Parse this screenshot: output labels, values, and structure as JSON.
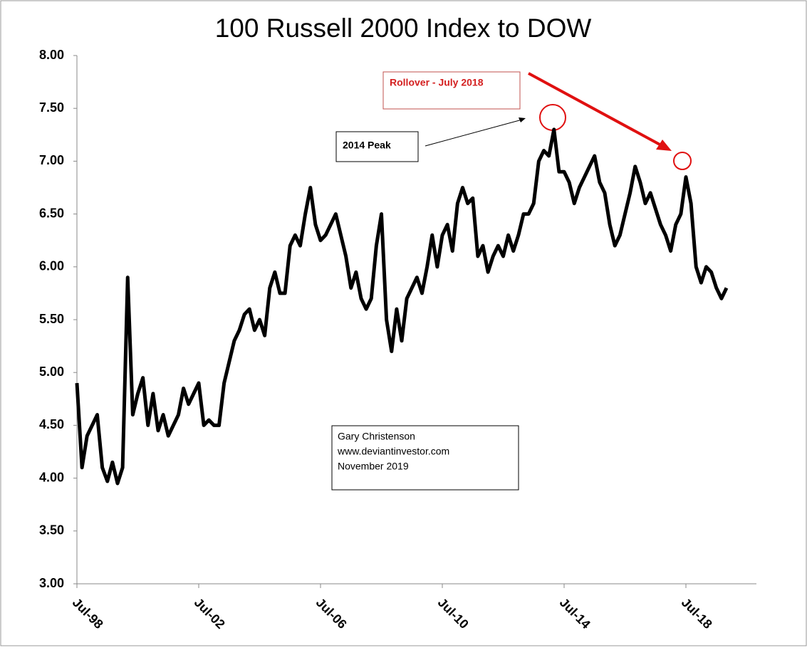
{
  "chart_data": {
    "type": "line",
    "title": "100 Russell 2000 Index to DOW",
    "categories": [
      "Jul-98",
      null,
      null,
      null,
      null,
      null,
      null,
      null,
      null,
      null,
      null,
      null,
      null,
      null,
      null,
      null,
      null,
      null,
      null,
      null,
      null,
      null,
      null,
      null,
      "Jul-02",
      null,
      null,
      null,
      null,
      null,
      null,
      null,
      null,
      null,
      null,
      null,
      null,
      null,
      null,
      null,
      null,
      null,
      null,
      null,
      null,
      null,
      null,
      null,
      "Jul-06",
      null,
      null,
      null,
      null,
      null,
      null,
      null,
      null,
      null,
      null,
      null,
      null,
      null,
      null,
      null,
      null,
      null,
      null,
      null,
      null,
      null,
      null,
      null,
      "Jul-10",
      null,
      null,
      null,
      null,
      null,
      null,
      null,
      null,
      null,
      null,
      null,
      null,
      null,
      null,
      null,
      null,
      null,
      null,
      null,
      null,
      null,
      null,
      null,
      "Jul-14",
      null,
      null,
      null,
      null,
      null,
      null,
      null,
      null,
      null,
      null,
      null,
      null,
      null,
      null,
      null,
      null,
      null,
      null,
      null,
      null,
      null,
      null,
      null,
      "Jul-18",
      null,
      null,
      null,
      null,
      null,
      null,
      null,
      null
    ],
    "series": [
      {
        "color": "#000000",
        "values": [
          4.9,
          4.1,
          4.4,
          4.5,
          4.6,
          4.1,
          3.97,
          4.15,
          3.95,
          4.1,
          5.9,
          4.6,
          4.8,
          4.95,
          4.5,
          4.8,
          4.45,
          4.6,
          4.4,
          4.5,
          4.6,
          4.85,
          4.7,
          4.8,
          4.9,
          4.5,
          4.55,
          4.5,
          4.5,
          4.9,
          5.1,
          5.3,
          5.4,
          5.55,
          5.6,
          5.4,
          5.5,
          5.35,
          5.8,
          5.95,
          5.75,
          5.75,
          6.2,
          6.3,
          6.2,
          6.5,
          6.75,
          6.4,
          6.25,
          6.3,
          6.4,
          6.5,
          6.3,
          6.1,
          5.8,
          5.95,
          5.7,
          5.6,
          5.7,
          6.2,
          6.5,
          5.5,
          5.2,
          5.6,
          5.3,
          5.7,
          5.8,
          5.9,
          5.75,
          6.0,
          6.3,
          6.0,
          6.3,
          6.4,
          6.15,
          6.6,
          6.75,
          6.6,
          6.65,
          6.1,
          6.2,
          5.95,
          6.1,
          6.2,
          6.1,
          6.3,
          6.15,
          6.3,
          6.5,
          6.5,
          6.6,
          7.0,
          7.1,
          7.05,
          7.3,
          6.9,
          6.9,
          6.8,
          6.6,
          6.75,
          6.85,
          6.95,
          7.05,
          6.8,
          6.7,
          6.4,
          6.2,
          6.3,
          6.5,
          6.7,
          6.95,
          6.8,
          6.6,
          6.7,
          6.55,
          6.4,
          6.3,
          6.15,
          6.4,
          6.5,
          6.85,
          6.6,
          6.0,
          5.85,
          6.0,
          5.95,
          5.8,
          5.7,
          5.8
        ]
      }
    ],
    "ylim": [
      3,
      8
    ],
    "yticks": [
      {
        "value": 3,
        "label": "3.00"
      },
      {
        "value": 3.5,
        "label": "3.50"
      },
      {
        "value": 4,
        "label": "4.00"
      },
      {
        "value": 4.5,
        "label": "4.50"
      },
      {
        "value": 5,
        "label": "5.00"
      },
      {
        "value": 5.5,
        "label": "5.50"
      },
      {
        "value": 6,
        "label": "6.00"
      },
      {
        "value": 6.5,
        "label": "6.50"
      },
      {
        "value": 7,
        "label": "7.00"
      },
      {
        "value": 7.5,
        "label": "7.50"
      },
      {
        "value": 8,
        "label": "8.00"
      }
    ],
    "annotations": [
      "Rollover - July 2018",
      "2014 Peak"
    ],
    "credit": [
      "Gary Christenson",
      "www.deviantinvestor.com",
      "November 2019"
    ]
  }
}
